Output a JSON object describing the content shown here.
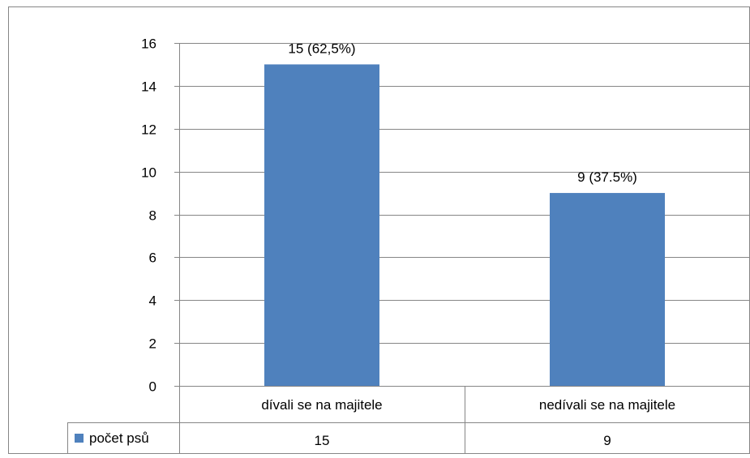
{
  "chart_data": {
    "type": "bar",
    "categories": [
      "dívali se na majitele",
      "nedívali se na majitele"
    ],
    "series": [
      {
        "name": "počet psů",
        "values": [
          15,
          9
        ],
        "data_labels": [
          "15 (62,5%)",
          "9 (37.5%)"
        ],
        "table_values": [
          "15",
          "9"
        ]
      }
    ],
    "title": "",
    "xlabel": "",
    "ylabel": "",
    "ylim": [
      0,
      16
    ],
    "yticks": [
      0,
      2,
      4,
      6,
      8,
      10,
      12,
      14,
      16
    ],
    "grid": true,
    "legend": "data-table",
    "colors": {
      "bar": "#4F81BD",
      "grid": "#868686",
      "axis": "#868686",
      "frame": "#868686"
    }
  }
}
